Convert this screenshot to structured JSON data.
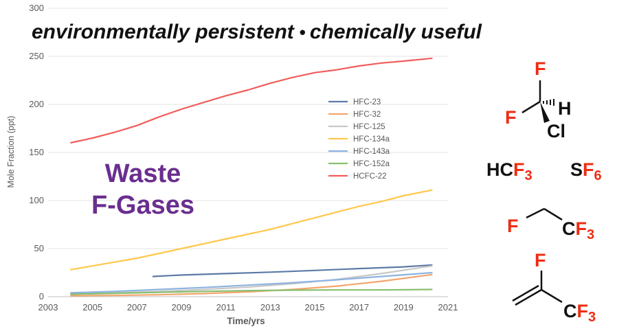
{
  "headline": {
    "left": "environmentally persistent",
    "bullet": "•",
    "right": "chemically useful"
  },
  "waste_label": {
    "line1": "Waste",
    "line2": "F-Gases"
  },
  "molecules": {
    "hcfc22": {
      "f_top": "F",
      "f_left": "F",
      "h": "H",
      "cl": "Cl"
    },
    "hcf3": {
      "prefix": "HC",
      "f": "F",
      "sub": "3"
    },
    "sf6": {
      "prefix": "S",
      "f": "F",
      "sub": "6"
    },
    "ch2fcf3": {
      "f_left": "F",
      "c": "C",
      "f": "F",
      "sub": "3"
    },
    "alkene": {
      "f_top": "F",
      "c": "C",
      "f": "F",
      "sub": "3"
    }
  },
  "chart_data": {
    "type": "line",
    "title": "",
    "xlabel": "Time/yrs",
    "ylabel": "Mole Fraction (ppt)",
    "xlim": [
      2003,
      2021
    ],
    "ylim": [
      0,
      300
    ],
    "x_ticks": [
      "2003",
      "2005",
      "2007",
      "2009",
      "2011",
      "2013",
      "2015",
      "2017",
      "2019",
      "2021"
    ],
    "y_ticks": [
      "0",
      "50",
      "100",
      "150",
      "200",
      "250",
      "300"
    ],
    "grid": "horizontal",
    "legend_position": "middle-right",
    "series": [
      {
        "name": "HFC-23",
        "color": "#5b7aa6",
        "x": [
          2007.7,
          2009,
          2011,
          2013,
          2015,
          2017,
          2019,
          2020.3
        ],
        "values": [
          21,
          22.5,
          24,
          25.5,
          27.3,
          29.2,
          31,
          33
        ]
      },
      {
        "name": "HFC-32",
        "color": "#f4a46e",
        "x": [
          2004,
          2006,
          2008,
          2010,
          2012,
          2014,
          2016,
          2018,
          2020.3
        ],
        "values": [
          1,
          1.3,
          2,
          3.2,
          5,
          7.5,
          11,
          16,
          23
        ]
      },
      {
        "name": "HFC-125",
        "color": "#c8c8c8",
        "x": [
          2004,
          2006,
          2008,
          2010,
          2012,
          2014,
          2016,
          2018,
          2020.3
        ],
        "values": [
          3,
          4,
          5.5,
          7.5,
          10,
          13.5,
          18,
          24,
          32
        ]
      },
      {
        "name": "HFC-134a",
        "color": "#ffc84a",
        "x": [
          2004,
          2005,
          2006,
          2007,
          2008,
          2009,
          2010,
          2011,
          2012,
          2013,
          2014,
          2015,
          2016,
          2017,
          2018,
          2019,
          2020.3
        ],
        "values": [
          28,
          32,
          36,
          40,
          45,
          50,
          55,
          60,
          65,
          70,
          76,
          82,
          88,
          94,
          99,
          105,
          111
        ]
      },
      {
        "name": "HFC-143a",
        "color": "#8cb3e0",
        "x": [
          2004,
          2006,
          2008,
          2010,
          2012,
          2014,
          2016,
          2018,
          2020.3
        ],
        "values": [
          4,
          5.5,
          7.5,
          9.5,
          12,
          14.5,
          17.5,
          21,
          25
        ]
      },
      {
        "name": "HFC-152a",
        "color": "#86c06e",
        "x": [
          2004,
          2006,
          2008,
          2010,
          2012,
          2014,
          2016,
          2018,
          2020.3
        ],
        "values": [
          2.5,
          3.5,
          4.5,
          5.5,
          6.3,
          6.8,
          7,
          7,
          7.5
        ]
      },
      {
        "name": "HCFC-22",
        "color": "#f25c5c",
        "x": [
          2004,
          2005,
          2006,
          2007,
          2008,
          2009,
          2010,
          2011,
          2012,
          2013,
          2014,
          2015,
          2016,
          2017,
          2018,
          2019,
          2020.3
        ],
        "values": [
          160,
          165,
          171,
          178,
          187,
          195,
          202,
          209,
          215,
          222,
          228,
          233,
          236,
          240,
          243,
          245,
          248
        ]
      }
    ]
  }
}
